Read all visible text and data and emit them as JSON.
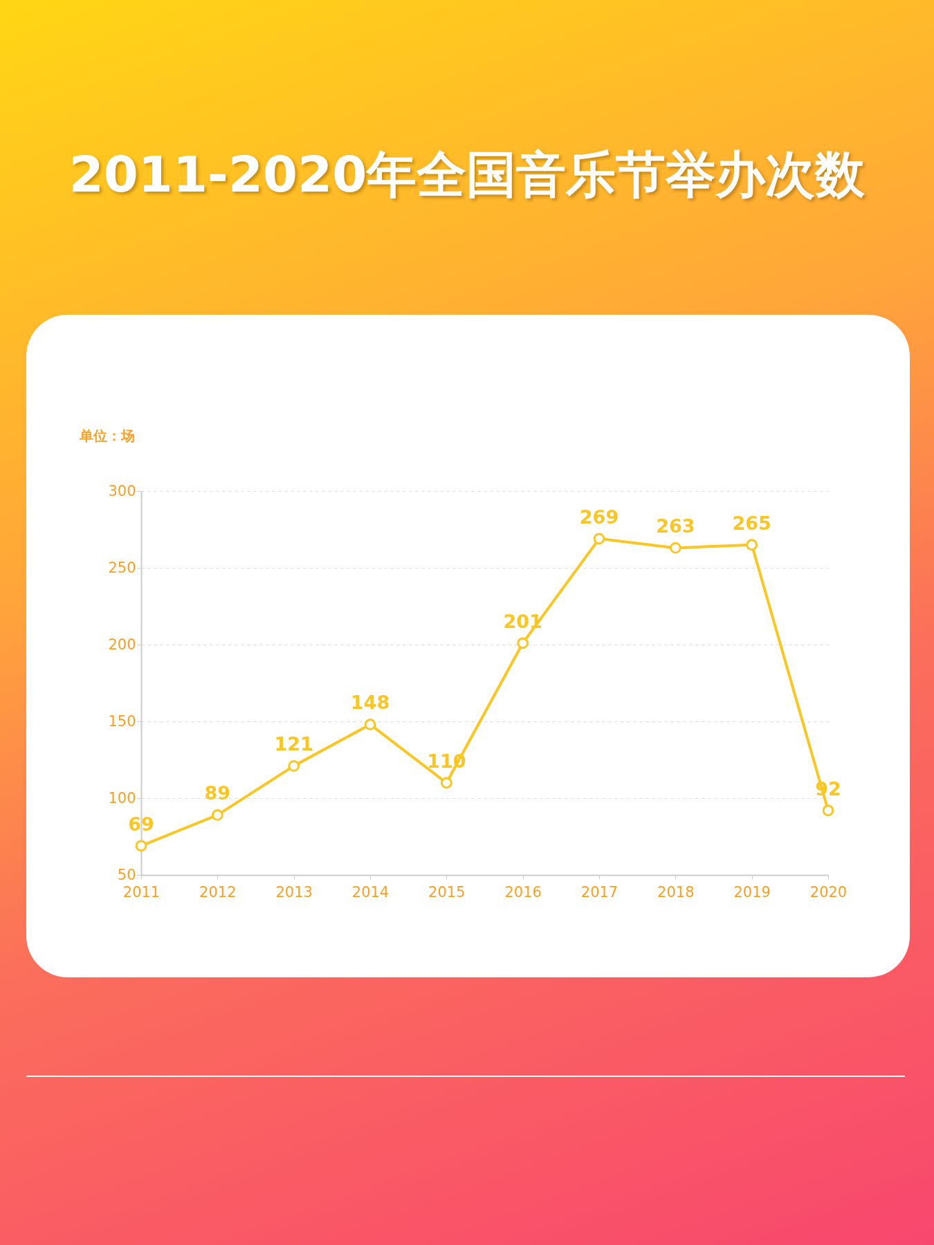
{
  "chart_data": {
    "type": "line",
    "title": "2011-2020年全国音乐节举办次数",
    "ylabel": "单位：场",
    "categories": [
      "2011",
      "2012",
      "2013",
      "2014",
      "2015",
      "2016",
      "2017",
      "2018",
      "2019",
      "2020"
    ],
    "values": [
      69,
      89,
      121,
      148,
      110,
      201,
      269,
      263,
      265,
      92
    ],
    "color": "#f9c623",
    "ylim": [
      50,
      300
    ],
    "yticks": [
      50,
      100,
      150,
      200,
      250,
      300
    ],
    "grid": "y",
    "marker": "circle",
    "line_style": "solid",
    "data_labels": true
  }
}
